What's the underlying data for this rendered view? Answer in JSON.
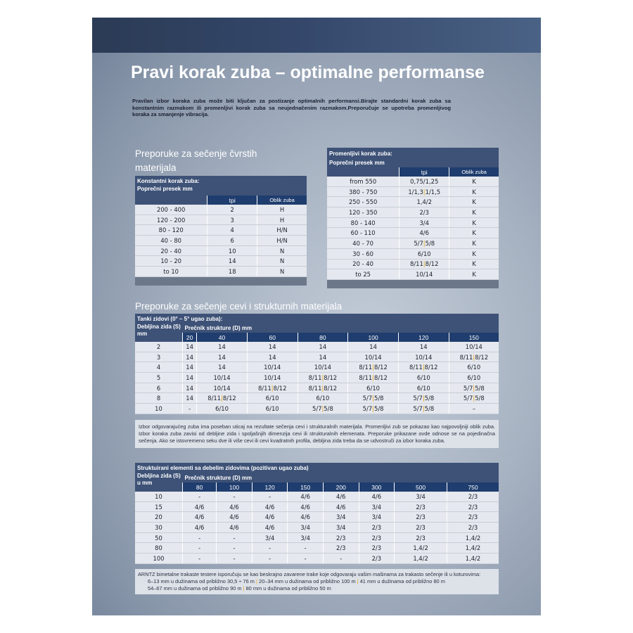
{
  "title": "Pravi korak zuba – optimalne performanse",
  "intro": "Pravilan izbor koraka zuba može biti ključan za postizanje optimalnih performansi.Birajte standardni korak zuba sa konstantnim razmakom ili promenljivi korak zuba sa neujednačenim razmakom.Preporučuje se upotreba promenljivog koraka za smanjenje vibracija.",
  "solid": {
    "section_title": "Preporuke za sečenje čvrstih materijala",
    "constant": {
      "caption": "Konstantni korak zuba:",
      "col_section": "Poprečni presek mm",
      "col_tpi": "tpi",
      "col_shape": "Oblik zuba",
      "rows": [
        [
          "200 - 400",
          "2",
          "H"
        ],
        [
          "120 - 200",
          "3",
          "H"
        ],
        [
          "80 - 120",
          "4",
          "H/N"
        ],
        [
          "40 - 80",
          "6",
          "H/N"
        ],
        [
          "20 - 40",
          "10",
          "N"
        ],
        [
          "10 - 20",
          "14",
          "N"
        ],
        [
          "to 10",
          "18",
          "N"
        ]
      ]
    },
    "variable": {
      "caption": "Promenljivi korak zuba:",
      "col_section": "Poprečni presek mm",
      "col_tpi": "tpi",
      "col_shape": "Oblik zuba",
      "rows": [
        [
          "from 550",
          "0,75/1,25",
          "K"
        ],
        [
          "380 - 750",
          "1/1,3|1/1,5",
          "K"
        ],
        [
          "250 - 550",
          "1,4/2",
          "K"
        ],
        [
          "120 - 350",
          "2/3",
          "K"
        ],
        [
          "80 - 140",
          "3/4",
          "K"
        ],
        [
          "60 - 110",
          "4/6",
          "K"
        ],
        [
          "40 - 70",
          "5/7|5/8",
          "K"
        ],
        [
          "30 - 60",
          "6/10",
          "K"
        ],
        [
          "20 - 40",
          "8/11|8/12",
          "K"
        ],
        [
          "to 25",
          "10/14",
          "K"
        ]
      ]
    }
  },
  "tubes": {
    "section_title": "Preporuke za sečenje cevi i strukturnih materijala",
    "thin": {
      "caption": "Tanki zidovi (0° – 5° ugao zuba):",
      "col_wall": "Debljina zida (S) mm",
      "col_diam": "Prečnik strukture (D) mm",
      "diameters": [
        "20",
        "40",
        "60",
        "80",
        "100",
        "120",
        "150"
      ],
      "rows": [
        [
          "2",
          "14",
          "14",
          "14",
          "14",
          "14",
          "14",
          "10/14"
        ],
        [
          "3",
          "14",
          "14",
          "14",
          "14",
          "10/14",
          "10/14",
          "8/11|8/12"
        ],
        [
          "4",
          "14",
          "14",
          "10/14",
          "10/14",
          "8/11|8/12",
          "8/11|8/12",
          "6/10"
        ],
        [
          "5",
          "14",
          "10/14",
          "10/14",
          "8/11|8/12",
          "8/11|8/12",
          "6/10",
          "6/10"
        ],
        [
          "6",
          "14",
          "10/14",
          "8/11|8/12",
          "8/11|8/12",
          "6/10",
          "6/10",
          "5/7|5/8"
        ],
        [
          "8",
          "14",
          "8/11|8/12",
          "6/10",
          "6/10",
          "5/7|5/8",
          "5/7|5/8",
          "5/7|5/8"
        ],
        [
          "10",
          "-",
          "6/10",
          "6/10",
          "5/7|5/8",
          "5/7|5/8",
          "5/7|5/8",
          "–"
        ]
      ]
    },
    "note": "Izbor odgovarajućeg zuba ima poseban uticaj na rezultate sečenja cevi i strukturalnih materijala. Promenljivi zub se pokazao kao najpovoljniji oblik zuba. Izbor koraka zuba zavisi od debljine zida i spoljašnjih dimenzija cevi ili strukturalnih elemenata. Preporuke prikazane ovde odnose se na pojedinačna sečenja. Ako se istovremeno seku dve ili više cevi ili cevi kvadratnih profila, debljina zida treba da se udvostruči za izbor koraka zuba.",
    "thick": {
      "caption": "Struktuirani elementi sa debelim zidovima (pozitivan ugao zuba)",
      "col_wall": "Debljina zida (S) u mm",
      "col_diam": "Prečnik strukture (D) mm",
      "diameters": [
        "80",
        "100",
        "120",
        "150",
        "200",
        "300",
        "500",
        "750"
      ],
      "rows": [
        [
          "10",
          "-",
          "-",
          "-",
          "4/6",
          "4/6",
          "4/6",
          "3/4",
          "2/3"
        ],
        [
          "15",
          "4/6",
          "4/6",
          "4/6",
          "4/6",
          "4/6",
          "3/4",
          "2/3",
          "2/3"
        ],
        [
          "20",
          "4/6",
          "4/6",
          "4/6",
          "4/6",
          "3/4",
          "3/4",
          "2/3",
          "2/3"
        ],
        [
          "30",
          "4/6",
          "4/6",
          "4/6",
          "3/4",
          "3/4",
          "2/3",
          "2/3",
          "2/3"
        ],
        [
          "50",
          "-",
          "-",
          "3/4",
          "3/4",
          "2/3",
          "2/3",
          "2/3",
          "1,4/2"
        ],
        [
          "80",
          "-",
          "-",
          "-",
          "-",
          "2/3",
          "2/3",
          "1,4/2",
          "1,4/2"
        ],
        [
          "100",
          "-",
          "-",
          "-",
          "-",
          "-",
          "2/3",
          "1,4/2",
          "1,4/2"
        ]
      ]
    }
  },
  "footer": {
    "line1": "ARNTZ bimetalne trakaste testere isporučuju se kao beskrajno zavarene trake koje odgovaraju vašim mašinama za trakasto sečenje ili u koturovima:",
    "line2a": "6–13 mm u dužinama od približno 30,5 ÷ 76 m",
    "line2b": "20–34 mm u dužinama od približno 100 m",
    "line2c": "41 mm u dužinama od približno 80 m",
    "line3a": "54–67 mm u dužinama od približno 90 m",
    "line3b": "80 mm u dužinama od približno 50 m",
    "separator": "|"
  },
  "colors": {
    "accent": "#e8a000",
    "header": "#1f3d6e",
    "caption": "#3e5277"
  }
}
